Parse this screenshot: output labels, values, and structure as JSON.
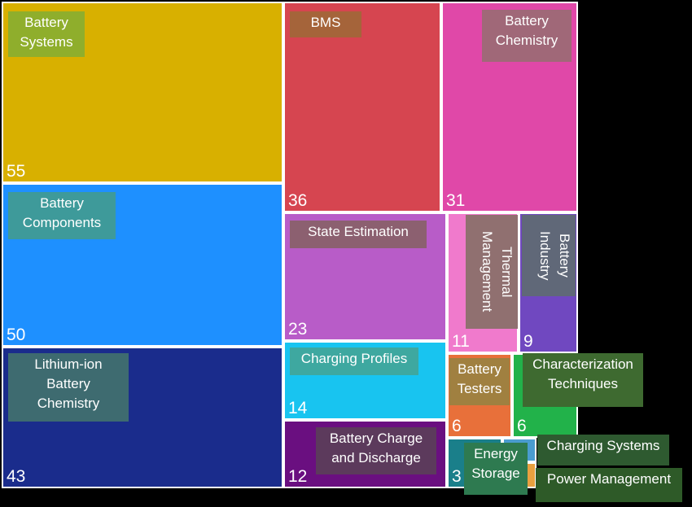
{
  "chart_data": {
    "type": "treemap",
    "items": [
      {
        "name": "Battery\nSystems",
        "value": 55,
        "color": "#D8B000",
        "label_color": "#8FAE2C"
      },
      {
        "name": "Battery\nComponents",
        "value": 50,
        "color": "#1E90FF",
        "label_color": "#3E9A9A"
      },
      {
        "name": "Lithium-ion\nBattery\nChemistry",
        "value": 43,
        "color": "#1A2C8C",
        "label_color": "#3E6B70"
      },
      {
        "name": "BMS",
        "value": 36,
        "color": "#D64550",
        "label_color": "#A5643A"
      },
      {
        "name": "Battery\nChemistry",
        "value": 31,
        "color": "#E048A8",
        "label_color": "#A06878"
      },
      {
        "name": "State Estimation",
        "value": 23,
        "color": "#B85CC8",
        "label_color": "#8C6070"
      },
      {
        "name": "Charging Profiles",
        "value": 14,
        "color": "#18C4F0",
        "label_color": "#3EA8A0"
      },
      {
        "name": "Battery Charge\nand Discharge",
        "value": 12,
        "color": "#6A0F80",
        "label_color": "#5C3A5C"
      },
      {
        "name": "Thermal\nManagement",
        "value": 11,
        "color": "#F07ACC",
        "label_color": "#907070"
      },
      {
        "name": "Battery\nIndustry",
        "value": 9,
        "color": "#7048C0",
        "label_color": "#606878"
      },
      {
        "name": "Battery\nTesters",
        "value": 6,
        "color": "#E8703A",
        "label_color": "#A08040"
      },
      {
        "name": "Characterization\nTechniques",
        "value": 6,
        "color": "#22B24A",
        "label_color": "#3E6A30"
      },
      {
        "name": "Energy\nStorage",
        "value": 3,
        "color": "#1A7F8A",
        "label_color": "#2E7A50"
      },
      {
        "name": "Charging Systems",
        "value": null,
        "color": "#4A9CD0",
        "label_color": "#2E5A30"
      },
      {
        "name": "Power Management",
        "value": null,
        "color": "#E8A040",
        "label_color": "#2E5A28"
      }
    ]
  }
}
